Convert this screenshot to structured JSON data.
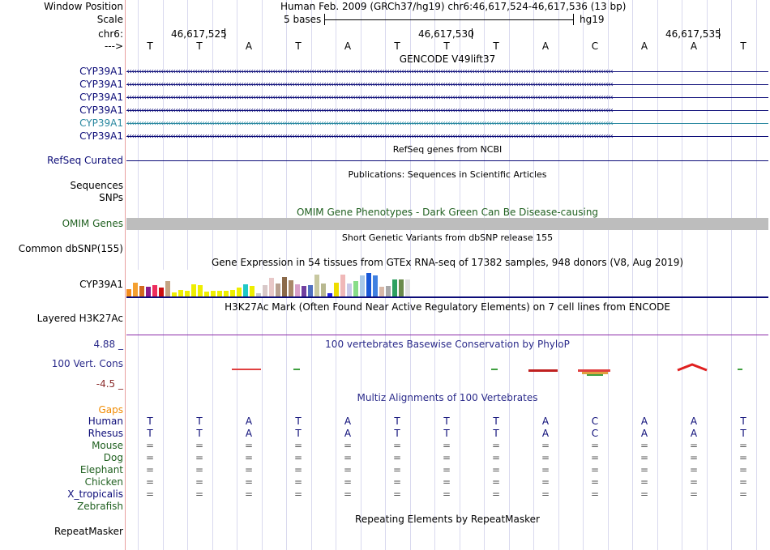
{
  "header": {
    "window_position_label": "Window Position",
    "assembly_text": "Human Feb. 2009 (GRCh37/hg19)   chr6:46,617,524-46,617,536 (13 bp)",
    "scale_label": "Scale",
    "scale_text": "5 bases",
    "scale_db": "hg19",
    "chrom_label": "chr6:",
    "strand_label": "--->",
    "positions": [
      "46,617,525",
      "46,617,530",
      "46,617,535"
    ],
    "bases": [
      "T",
      "T",
      "A",
      "T",
      "A",
      "T",
      "T",
      "T",
      "A",
      "C",
      "A",
      "A",
      "T"
    ]
  },
  "gencode": {
    "title": "GENCODE V49lift37",
    "transcripts": [
      "CYP39A1",
      "CYP39A1",
      "CYP39A1",
      "CYP39A1",
      "CYP39A1",
      "CYP39A1"
    ],
    "colors": [
      "#0c0c78",
      "#0c0c78",
      "#0c0c78",
      "#0c0c78",
      "#2a88a0",
      "#0c0c78"
    ]
  },
  "refseq": {
    "title": "RefSeq genes from NCBI",
    "label": "RefSeq Curated"
  },
  "publications": {
    "title": "Publications: Sequences in Scientific Articles",
    "label1": "Sequences",
    "label2": "SNPs"
  },
  "omim": {
    "title": "OMIM Gene Phenotypes - Dark Green Can Be Disease-causing",
    "label": "OMIM Genes"
  },
  "dbsnp": {
    "title": "Short Genetic Variants from dbSNP release 155",
    "label": "Common dbSNP(155)"
  },
  "gtex": {
    "title": "Gene Expression in 54 tissues from GTEx RNA-seq of 17382 samples, 948 donors (V8, Aug 2019)",
    "label": "CYP39A1",
    "bars": [
      {
        "v": 0.18,
        "c": "#f48c1c"
      },
      {
        "v": 0.32,
        "c": "#f4a030"
      },
      {
        "v": 0.25,
        "c": "#d2691e"
      },
      {
        "v": 0.22,
        "c": "#8b1a8b"
      },
      {
        "v": 0.26,
        "c": "#ee2c5c"
      },
      {
        "v": 0.2,
        "c": "#cc1010"
      },
      {
        "v": 0.34,
        "c": "#c4a482"
      },
      {
        "v": 0.1,
        "c": "#eeee00"
      },
      {
        "v": 0.16,
        "c": "#eeee00"
      },
      {
        "v": 0.14,
        "c": "#eeee00"
      },
      {
        "v": 0.28,
        "c": "#eeee00"
      },
      {
        "v": 0.26,
        "c": "#eeee00"
      },
      {
        "v": 0.12,
        "c": "#eeee00"
      },
      {
        "v": 0.14,
        "c": "#eeee00"
      },
      {
        "v": 0.14,
        "c": "#eeee00"
      },
      {
        "v": 0.14,
        "c": "#eeee00"
      },
      {
        "v": 0.16,
        "c": "#eeee00"
      },
      {
        "v": 0.2,
        "c": "#eeee00"
      },
      {
        "v": 0.28,
        "c": "#20c8c8"
      },
      {
        "v": 0.24,
        "c": "#eeee00"
      },
      {
        "v": 0.08,
        "c": "#c8c8c8"
      },
      {
        "v": 0.26,
        "c": "#d8c8c8"
      },
      {
        "v": 0.42,
        "c": "#e8c8c8"
      },
      {
        "v": 0.3,
        "c": "#b8a090"
      },
      {
        "v": 0.44,
        "c": "#8b6a4a"
      },
      {
        "v": 0.36,
        "c": "#a88868"
      },
      {
        "v": 0.28,
        "c": "#d8a0c8"
      },
      {
        "v": 0.24,
        "c": "#7040a0"
      },
      {
        "v": 0.26,
        "c": "#5070c0"
      },
      {
        "v": 0.48,
        "c": "#c8c8a0"
      },
      {
        "v": 0.3,
        "c": "#b8b890"
      },
      {
        "v": 0.08,
        "c": "#2020e0"
      },
      {
        "v": 0.32,
        "c": "#eedd00"
      },
      {
        "v": 0.48,
        "c": "#f0b8b8"
      },
      {
        "v": 0.3,
        "c": "#c8c8e8"
      },
      {
        "v": 0.34,
        "c": "#88dd88"
      },
      {
        "v": 0.46,
        "c": "#a8c8e8"
      },
      {
        "v": 0.52,
        "c": "#1858d8"
      },
      {
        "v": 0.46,
        "c": "#4080e0"
      },
      {
        "v": 0.22,
        "c": "#d8b8a8"
      },
      {
        "v": 0.24,
        "c": "#a8a8a8"
      },
      {
        "v": 0.38,
        "c": "#2ea060"
      },
      {
        "v": 0.38,
        "c": "#6a8a4a"
      },
      {
        "v": 0.38,
        "c": "#e0e0e0"
      }
    ]
  },
  "h3k27ac": {
    "title": "H3K27Ac Mark (Often Found Near Active Regulatory Elements) on 7 cell lines from ENCODE",
    "label": "Layered H3K27Ac"
  },
  "phylop": {
    "title": "100 vertebrates Basewise Conservation by PhyloP",
    "label": "100 Vert. Cons",
    "max": "4.88 _",
    "min": "-4.5 _"
  },
  "multiz": {
    "title": "Multiz Alignments of 100 Vertebrates",
    "gaps_label": "Gaps",
    "species": [
      {
        "name": "Human",
        "seq": [
          "T",
          "T",
          "A",
          "T",
          "A",
          "T",
          "T",
          "T",
          "A",
          "C",
          "A",
          "A",
          "T"
        ],
        "color": "#0c0c78"
      },
      {
        "name": "Rhesus",
        "seq": [
          "T",
          "T",
          "A",
          "T",
          "A",
          "T",
          "T",
          "T",
          "A",
          "C",
          "A",
          "A",
          "T"
        ],
        "color": "#0c0c78"
      },
      {
        "name": "Mouse",
        "seq": [
          "=",
          "=",
          "=",
          "=",
          "=",
          "=",
          "=",
          "=",
          "=",
          "=",
          "=",
          "=",
          "="
        ],
        "color": "#206020"
      },
      {
        "name": "Dog",
        "seq": [
          "=",
          "=",
          "=",
          "=",
          "=",
          "=",
          "=",
          "=",
          "=",
          "=",
          "=",
          "=",
          "="
        ],
        "color": "#206020"
      },
      {
        "name": "Elephant",
        "seq": [
          "=",
          "=",
          "=",
          "=",
          "=",
          "=",
          "=",
          "=",
          "=",
          "=",
          "=",
          "=",
          "="
        ],
        "color": "#206020"
      },
      {
        "name": "Chicken",
        "seq": [
          "=",
          "=",
          "=",
          "=",
          "=",
          "=",
          "=",
          "=",
          "=",
          "=",
          "=",
          "=",
          "="
        ],
        "color": "#206020"
      },
      {
        "name": "X_tropicalis",
        "seq": [
          "=",
          "=",
          "=",
          "=",
          "=",
          "=",
          "=",
          "=",
          "=",
          "=",
          "=",
          "=",
          "="
        ],
        "color": "#0c0c78"
      },
      {
        "name": "Zebrafish",
        "seq": [],
        "color": "#206020"
      }
    ]
  },
  "repeatmasker": {
    "title": "Repeating Elements by RepeatMasker",
    "label": "RepeatMasker"
  }
}
